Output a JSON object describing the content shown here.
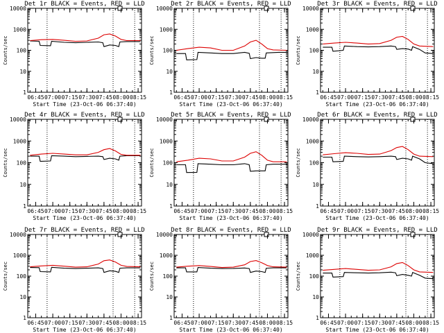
{
  "chart_data": [
    {
      "type": "line",
      "title": "Det 1r BLACK = Events, RED = LLD",
      "xlabel": "Start Time (23-Oct-06 06:37:40)",
      "ylabel": "Counts/sec",
      "x_ticks": [
        "06:45",
        "07:00",
        "07:15",
        "07:30",
        "07:45",
        "08:00",
        "08:15"
      ],
      "y_ticks": [
        "1",
        "10",
        "100",
        "1000",
        "10000"
      ],
      "ylim": [
        1,
        10000
      ],
      "y_scale": "log",
      "series": [
        {
          "name": "Events",
          "color": "#000000",
          "x": [
            "06:40",
            "06:48",
            "06:49",
            "06:58",
            "06:59",
            "07:10",
            "07:20",
            "07:30",
            "07:40",
            "07:44",
            "07:45",
            "07:50",
            "07:55",
            "07:58",
            "07:59",
            "08:05",
            "08:10",
            "08:17"
          ],
          "values": [
            280,
            270,
            170,
            165,
            270,
            240,
            230,
            240,
            250,
            230,
            150,
            180,
            170,
            150,
            250,
            260,
            260,
            260
          ]
        },
        {
          "name": "LLD",
          "color": "#dd0000",
          "x": [
            "06:40",
            "06:50",
            "07:00",
            "07:10",
            "07:20",
            "07:30",
            "07:40",
            "07:45",
            "07:50",
            "07:55",
            "08:00",
            "08:05",
            "08:17"
          ],
          "values": [
            290,
            320,
            330,
            300,
            270,
            280,
            380,
            550,
            600,
            480,
            330,
            290,
            290
          ]
        }
      ]
    },
    {
      "type": "line",
      "title": "Det 2r BLACK = Events, RED = LLD",
      "xlabel": "Start Time (23-Oct-06 06:37:40)",
      "ylabel": "Counts/sec",
      "x_ticks": [
        "06:45",
        "07:00",
        "07:15",
        "07:30",
        "07:45",
        "08:00",
        "08:15"
      ],
      "y_ticks": [
        "1",
        "10",
        "100",
        "1000",
        "10000"
      ],
      "ylim": [
        1,
        10000
      ],
      "y_scale": "log",
      "series": [
        {
          "name": "Events",
          "color": "#000000",
          "x": [
            "06:40",
            "06:48",
            "06:49",
            "06:58",
            "06:59",
            "07:10",
            "07:20",
            "07:30",
            "07:40",
            "07:44",
            "07:45",
            "07:50",
            "07:55",
            "07:58",
            "07:59",
            "08:05",
            "08:10",
            "08:17"
          ],
          "values": [
            70,
            70,
            35,
            36,
            80,
            75,
            70,
            70,
            80,
            72,
            40,
            45,
            42,
            42,
            75,
            78,
            80,
            80
          ]
        },
        {
          "name": "LLD",
          "color": "#dd0000",
          "x": [
            "06:40",
            "06:50",
            "07:00",
            "07:10",
            "07:20",
            "07:30",
            "07:40",
            "07:45",
            "07:50",
            "07:55",
            "08:00",
            "08:05",
            "08:17"
          ],
          "values": [
            100,
            120,
            140,
            130,
            100,
            100,
            160,
            250,
            300,
            200,
            120,
            105,
            100
          ]
        }
      ]
    },
    {
      "type": "line",
      "title": "Det 3r BLACK = Events, RED = LLD",
      "xlabel": "Start Time (23-Oct-06 06:37:40)",
      "ylabel": "Counts/sec",
      "x_ticks": [
        "06:45",
        "07:00",
        "07:15",
        "07:30",
        "07:45",
        "08:00",
        "08:15"
      ],
      "y_ticks": [
        "1",
        "10",
        "100",
        "1000",
        "10000"
      ],
      "ylim": [
        1,
        10000
      ],
      "y_scale": "log",
      "series": [
        {
          "name": "Events",
          "color": "#000000",
          "x": [
            "06:40",
            "06:48",
            "06:49",
            "06:58",
            "06:59",
            "07:10",
            "07:20",
            "07:30",
            "07:40",
            "07:44",
            "07:45",
            "07:50",
            "07:55",
            "07:58",
            "07:59",
            "08:05",
            "08:10",
            "08:17"
          ],
          "values": [
            140,
            140,
            90,
            100,
            160,
            150,
            145,
            150,
            160,
            150,
            110,
            120,
            115,
            100,
            150,
            110,
            75,
            70
          ]
        },
        {
          "name": "LLD",
          "color": "#dd0000",
          "x": [
            "06:40",
            "06:50",
            "07:00",
            "07:10",
            "07:20",
            "07:30",
            "07:40",
            "07:45",
            "07:50",
            "07:55",
            "08:00",
            "08:05",
            "08:17"
          ],
          "values": [
            200,
            220,
            240,
            220,
            200,
            210,
            300,
            420,
            460,
            330,
            200,
            160,
            150
          ]
        }
      ]
    },
    {
      "type": "line",
      "title": "Det 4r BLACK = Events, RED = LLD",
      "xlabel": "Start Time (23-Oct-06 06:37:40)",
      "ylabel": "Counts/sec",
      "x_ticks": [
        "06:45",
        "07:00",
        "07:15",
        "07:30",
        "07:45",
        "08:00",
        "08:15"
      ],
      "y_ticks": [
        "1",
        "10",
        "100",
        "1000",
        "10000"
      ],
      "ylim": [
        1,
        10000
      ],
      "y_scale": "log",
      "series": [
        {
          "name": "Events",
          "color": "#000000",
          "x": [
            "06:40",
            "06:48",
            "06:49",
            "06:58",
            "06:59",
            "07:10",
            "07:20",
            "07:30",
            "07:40",
            "07:44",
            "07:45",
            "07:50",
            "07:55",
            "07:58",
            "07:59",
            "08:05",
            "08:10",
            "08:17"
          ],
          "values": [
            200,
            200,
            115,
            120,
            210,
            200,
            190,
            195,
            200,
            190,
            140,
            160,
            150,
            130,
            200,
            210,
            210,
            210
          ]
        },
        {
          "name": "LLD",
          "color": "#dd0000",
          "x": [
            "06:40",
            "06:50",
            "07:00",
            "07:10",
            "07:20",
            "07:30",
            "07:40",
            "07:45",
            "07:50",
            "07:55",
            "08:00",
            "08:05",
            "08:17"
          ],
          "values": [
            220,
            250,
            270,
            250,
            230,
            230,
            300,
            400,
            450,
            350,
            240,
            220,
            220
          ]
        }
      ]
    },
    {
      "type": "line",
      "title": "Det 5r BLACK = Events, RED = LLD",
      "xlabel": "Start Time (23-Oct-06 06:37:40)",
      "ylabel": "Counts/sec",
      "x_ticks": [
        "06:45",
        "07:00",
        "07:15",
        "07:30",
        "07:45",
        "08:00",
        "08:15"
      ],
      "y_ticks": [
        "1",
        "10",
        "100",
        "1000",
        "10000"
      ],
      "ylim": [
        1,
        10000
      ],
      "y_scale": "log",
      "series": [
        {
          "name": "Events",
          "color": "#000000",
          "x": [
            "06:40",
            "06:48",
            "06:49",
            "06:58",
            "06:59",
            "07:10",
            "07:20",
            "07:30",
            "07:40",
            "07:44",
            "07:45",
            "07:50",
            "07:55",
            "07:58",
            "07:59",
            "08:05",
            "08:10",
            "08:17"
          ],
          "values": [
            80,
            80,
            35,
            36,
            90,
            85,
            80,
            80,
            90,
            80,
            40,
            42,
            42,
            42,
            80,
            85,
            85,
            85
          ]
        },
        {
          "name": "LLD",
          "color": "#dd0000",
          "x": [
            "06:40",
            "06:50",
            "07:00",
            "07:10",
            "07:20",
            "07:30",
            "07:40",
            "07:45",
            "07:50",
            "07:55",
            "08:00",
            "08:05",
            "08:17"
          ],
          "values": [
            110,
            130,
            160,
            150,
            120,
            120,
            180,
            270,
            320,
            220,
            130,
            110,
            110
          ]
        }
      ]
    },
    {
      "type": "line",
      "title": "Det 6r BLACK = Events, RED = LLD",
      "xlabel": "Start Time (23-Oct-06 06:37:40)",
      "ylabel": "Counts/sec",
      "x_ticks": [
        "06:45",
        "07:00",
        "07:15",
        "07:30",
        "07:45",
        "08:00",
        "08:15"
      ],
      "y_ticks": [
        "1",
        "10",
        "100",
        "1000",
        "10000"
      ],
      "ylim": [
        1,
        10000
      ],
      "y_scale": "log",
      "series": [
        {
          "name": "Events",
          "color": "#000000",
          "x": [
            "06:40",
            "06:48",
            "06:49",
            "06:58",
            "06:59",
            "07:10",
            "07:20",
            "07:30",
            "07:40",
            "07:44",
            "07:45",
            "07:50",
            "07:55",
            "07:58",
            "07:59",
            "08:05",
            "08:10",
            "08:17"
          ],
          "values": [
            180,
            180,
            110,
            115,
            200,
            190,
            185,
            190,
            200,
            190,
            140,
            160,
            150,
            130,
            200,
            150,
            100,
            90
          ]
        },
        {
          "name": "LLD",
          "color": "#dd0000",
          "x": [
            "06:40",
            "06:50",
            "07:00",
            "07:10",
            "07:20",
            "07:30",
            "07:40",
            "07:45",
            "07:50",
            "07:55",
            "08:00",
            "08:05",
            "08:17"
          ],
          "values": [
            230,
            260,
            290,
            270,
            240,
            250,
            360,
            500,
            560,
            400,
            250,
            200,
            190
          ]
        }
      ]
    },
    {
      "type": "line",
      "title": "Det 7r BLACK = Events, RED = LLD",
      "xlabel": "Start Time (23-Oct-06 06:37:40)",
      "ylabel": "Counts/sec",
      "x_ticks": [
        "06:45",
        "07:00",
        "07:15",
        "07:30",
        "07:45",
        "08:00",
        "08:15"
      ],
      "y_ticks": [
        "1",
        "10",
        "100",
        "1000",
        "10000"
      ],
      "ylim": [
        1,
        10000
      ],
      "y_scale": "log",
      "series": [
        {
          "name": "Events",
          "color": "#000000",
          "x": [
            "06:40",
            "06:48",
            "06:49",
            "06:58",
            "06:59",
            "07:10",
            "07:20",
            "07:30",
            "07:40",
            "07:44",
            "07:45",
            "07:50",
            "07:55",
            "07:58",
            "07:59",
            "08:05",
            "08:10",
            "08:17"
          ],
          "values": [
            260,
            255,
            165,
            160,
            265,
            240,
            230,
            240,
            250,
            230,
            150,
            180,
            170,
            150,
            240,
            250,
            250,
            250
          ]
        },
        {
          "name": "LLD",
          "color": "#dd0000",
          "x": [
            "06:40",
            "06:50",
            "07:00",
            "07:10",
            "07:20",
            "07:30",
            "07:40",
            "07:45",
            "07:50",
            "07:55",
            "08:00",
            "08:05",
            "08:17"
          ],
          "values": [
            280,
            310,
            330,
            300,
            270,
            280,
            380,
            550,
            600,
            480,
            330,
            290,
            280
          ]
        }
      ]
    },
    {
      "type": "line",
      "title": "Det 8r BLACK = Events, RED = LLD",
      "xlabel": "Start Time (23-Oct-06 06:37:40)",
      "ylabel": "Counts/sec",
      "x_ticks": [
        "06:45",
        "07:00",
        "07:15",
        "07:30",
        "07:45",
        "08:00",
        "08:15"
      ],
      "y_ticks": [
        "1",
        "10",
        "100",
        "1000",
        "10000"
      ],
      "ylim": [
        1,
        10000
      ],
      "y_scale": "log",
      "series": [
        {
          "name": "Events",
          "color": "#000000",
          "x": [
            "06:40",
            "06:48",
            "06:49",
            "06:58",
            "06:59",
            "07:10",
            "07:20",
            "07:30",
            "07:40",
            "07:44",
            "07:45",
            "07:50",
            "07:55",
            "07:58",
            "07:59",
            "08:05",
            "08:10",
            "08:17"
          ],
          "values": [
            250,
            250,
            160,
            160,
            260,
            240,
            230,
            235,
            245,
            230,
            150,
            175,
            165,
            150,
            240,
            250,
            250,
            250
          ]
        },
        {
          "name": "LLD",
          "color": "#dd0000",
          "x": [
            "06:40",
            "06:50",
            "07:00",
            "07:10",
            "07:20",
            "07:30",
            "07:40",
            "07:45",
            "07:50",
            "07:55",
            "08:00",
            "08:05",
            "08:17"
          ],
          "values": [
            270,
            300,
            320,
            290,
            260,
            270,
            350,
            500,
            560,
            440,
            320,
            280,
            270
          ]
        }
      ]
    },
    {
      "type": "line",
      "title": "Det 9r BLACK = Events, RED = LLD",
      "xlabel": "Start Time (23-Oct-06 06:37:40)",
      "ylabel": "Counts/sec",
      "x_ticks": [
        "06:45",
        "07:00",
        "07:15",
        "07:30",
        "07:45",
        "08:00",
        "08:15"
      ],
      "y_ticks": [
        "1",
        "10",
        "100",
        "1000",
        "10000"
      ],
      "ylim": [
        1,
        10000
      ],
      "y_scale": "log",
      "series": [
        {
          "name": "Events",
          "color": "#000000",
          "x": [
            "06:40",
            "06:48",
            "06:49",
            "06:58",
            "06:59",
            "07:10",
            "07:20",
            "07:30",
            "07:40",
            "07:44",
            "07:45",
            "07:50",
            "07:55",
            "07:58",
            "07:59",
            "08:05",
            "08:10",
            "08:17"
          ],
          "values": [
            140,
            140,
            90,
            95,
            150,
            145,
            140,
            145,
            155,
            145,
            105,
            120,
            110,
            100,
            150,
            110,
            80,
            75
          ]
        },
        {
          "name": "LLD",
          "color": "#dd0000",
          "x": [
            "06:40",
            "06:50",
            "07:00",
            "07:10",
            "07:20",
            "07:30",
            "07:40",
            "07:45",
            "07:50",
            "07:55",
            "08:00",
            "08:05",
            "08:17"
          ],
          "values": [
            190,
            210,
            230,
            210,
            190,
            200,
            280,
            400,
            450,
            320,
            200,
            160,
            150
          ]
        }
      ]
    }
  ]
}
